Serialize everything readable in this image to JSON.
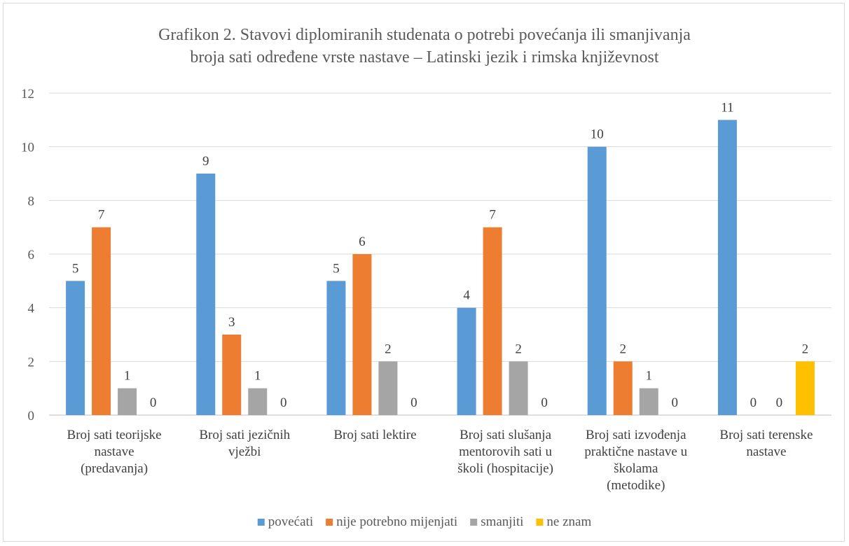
{
  "chart_data": {
    "type": "bar",
    "title": "Grafikon 2. Stavovi diplomiranih studenata o potrebi povećanja ili smanjivanja broja sati određene vrste nastave – Latinski jezik i rimska književnost",
    "title_lines": [
      "Grafikon 2. Stavovi diplomiranih studenata o potrebi povećanja ili smanjivanja",
      "broja sati određene vrste nastave – Latinski jezik i rimska književnost"
    ],
    "xlabel": "",
    "ylabel": "",
    "ylim": [
      0,
      12
    ],
    "yticks": [
      0,
      2,
      4,
      6,
      8,
      10,
      12
    ],
    "grid": true,
    "legend_position": "bottom",
    "categories": [
      "Broj sati teorijske nastave (predavanja)",
      "Broj sati jezičnih vježbi",
      "Broj sati lektire",
      "Broj sati slušanja mentorovih sati u školi (hospitacije)",
      "Broj sati izvođenja praktične nastave u školama (metodike)",
      "Broj sati terenske nastave"
    ],
    "category_lines": [
      [
        "Broj sati teorijske",
        "nastave",
        "(predavanja)"
      ],
      [
        "Broj sati jezičnih",
        "vježbi"
      ],
      [
        "Broj sati lektire"
      ],
      [
        "Broj sati slušanja",
        "mentorovih sati u",
        "školi (hospitacije)"
      ],
      [
        "Broj sati izvođenja",
        "praktične nastave u",
        "školama",
        "(metodike)"
      ],
      [
        "Broj sati terenske",
        "nastave"
      ]
    ],
    "series": [
      {
        "name": "povećati",
        "color": "#5b9bd5",
        "values": [
          5,
          9,
          5,
          4,
          10,
          11
        ]
      },
      {
        "name": "nije potrebno mijenjati",
        "color": "#ed7d31",
        "values": [
          7,
          3,
          6,
          7,
          2,
          0
        ]
      },
      {
        "name": "smanjiti",
        "color": "#a5a5a5",
        "values": [
          1,
          1,
          2,
          2,
          1,
          0
        ]
      },
      {
        "name": "ne znam",
        "color": "#ffc000",
        "values": [
          0,
          0,
          0,
          0,
          0,
          2
        ]
      }
    ]
  }
}
